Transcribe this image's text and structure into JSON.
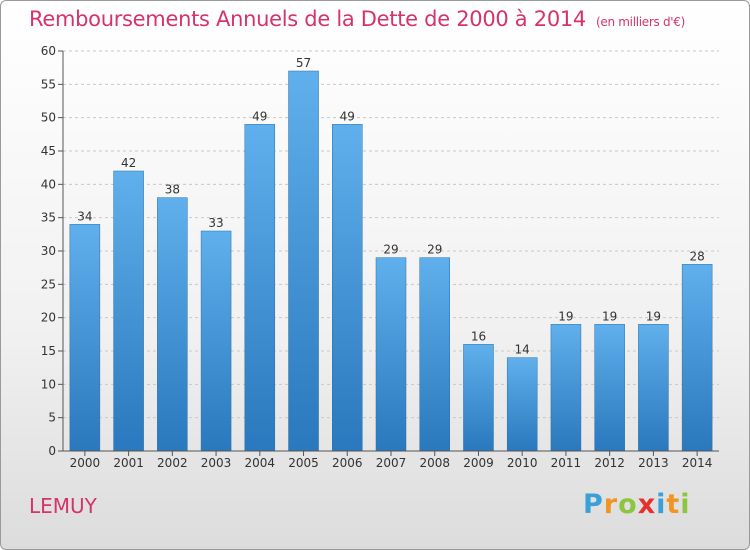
{
  "title": "Remboursements Annuels de la Dette de 2000 à 2014",
  "unit": "(en milliers d'€)",
  "commune": "LEMUY",
  "logo": {
    "letters": [
      "P",
      "r",
      "o",
      "x",
      "i",
      "t",
      "i"
    ],
    "colors": [
      "#3aa0d8",
      "#f29422",
      "#8cc63f",
      "#e4312b",
      "#3aa0d8",
      "#f29422",
      "#8cc63f"
    ]
  },
  "chart_data": {
    "type": "bar",
    "categories": [
      "2000",
      "2001",
      "2002",
      "2003",
      "2004",
      "2005",
      "2006",
      "2007",
      "2008",
      "2009",
      "2010",
      "2011",
      "2012",
      "2013",
      "2014"
    ],
    "values": [
      34,
      42,
      38,
      33,
      49,
      57,
      49,
      29,
      29,
      16,
      14,
      19,
      19,
      19,
      28
    ],
    "ylim": [
      0,
      60
    ],
    "yticks": [
      0,
      5,
      10,
      15,
      20,
      25,
      30,
      35,
      40,
      45,
      50,
      55,
      60
    ],
    "grid": true,
    "bar_color": "#3d8fd6"
  }
}
